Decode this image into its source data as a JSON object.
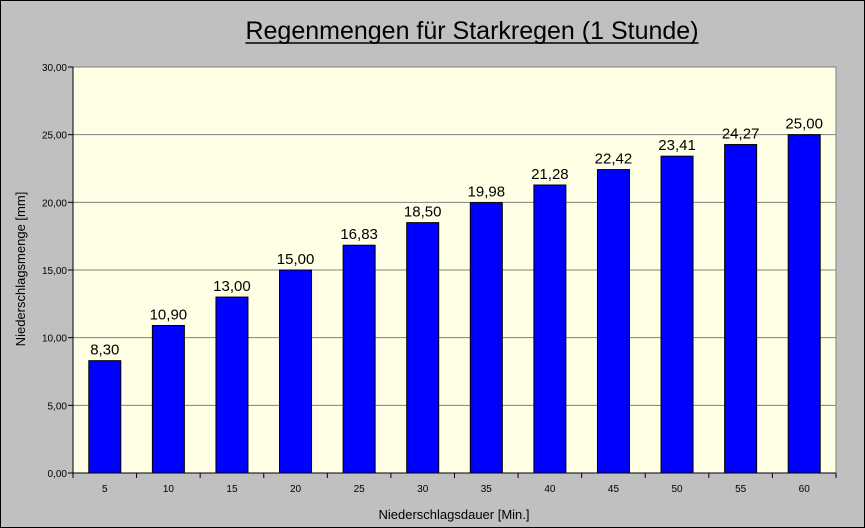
{
  "chart_data": {
    "type": "bar",
    "title": "Regenmengen für Starkregen (1 Stunde)",
    "xlabel": "Niederschlagsdauer [Min.]",
    "ylabel": "Niederschlagsmenge [mm]",
    "categories": [
      "5",
      "10",
      "15",
      "20",
      "25",
      "30",
      "35",
      "40",
      "45",
      "50",
      "55",
      "60"
    ],
    "values": [
      8.3,
      10.9,
      13.0,
      15.0,
      16.83,
      18.5,
      19.98,
      21.28,
      22.42,
      23.41,
      24.27,
      25.0
    ],
    "value_labels": [
      "8,30",
      "10,90",
      "13,00",
      "15,00",
      "16,83",
      "18,50",
      "19,98",
      "21,28",
      "22,42",
      "23,41",
      "24,27",
      "25,00"
    ],
    "ylim": [
      0,
      30
    ],
    "yticks": [
      0,
      5,
      10,
      15,
      20,
      25,
      30
    ],
    "ytick_labels": [
      "0,00",
      "5,00",
      "10,00",
      "15,00",
      "20,00",
      "25,00",
      "30,00"
    ],
    "grid": true,
    "legend": "none",
    "colors": {
      "bar_fill": "#0000ff",
      "bar_stroke": "#000000",
      "plot_background": "#ffffe5",
      "chart_background": "#c0c0c0",
      "gridline": "#808080"
    }
  }
}
